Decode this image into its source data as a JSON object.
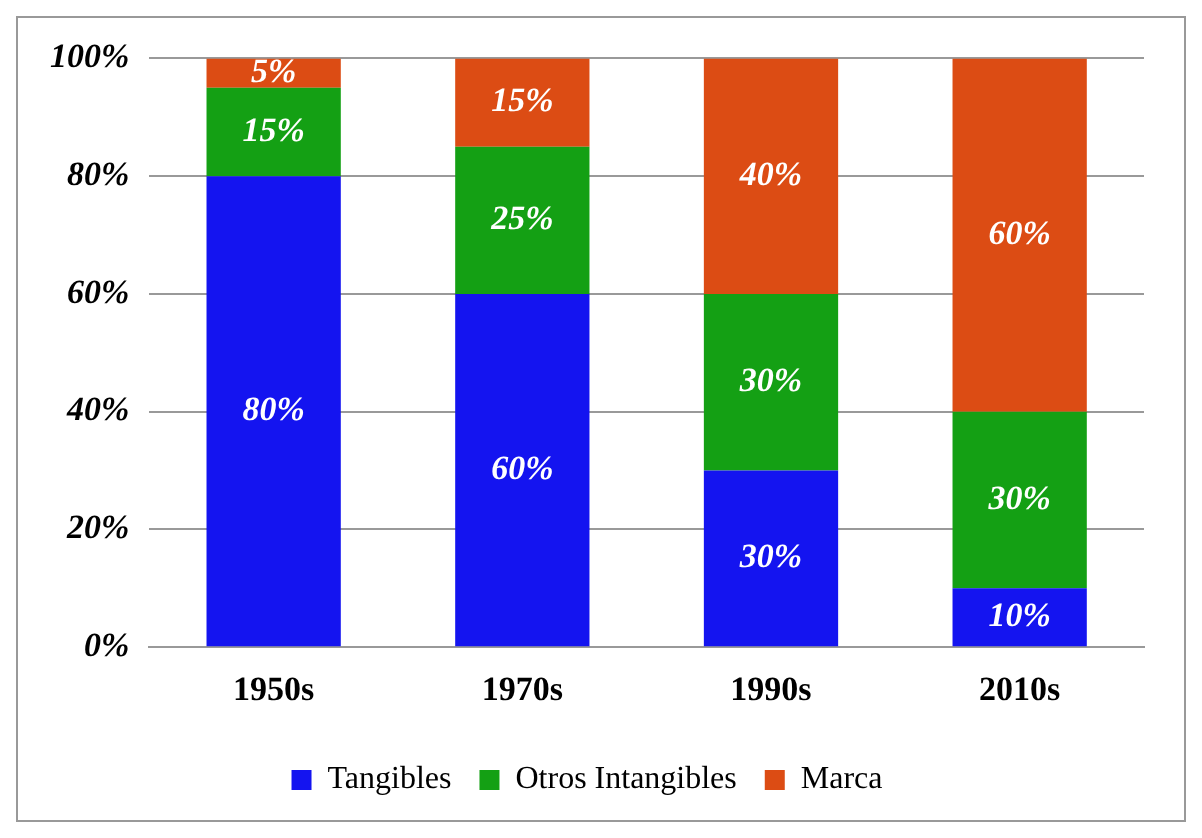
{
  "chart_data": {
    "type": "bar",
    "stacked": true,
    "categories": [
      "1950s",
      "1970s",
      "1990s",
      "2010s"
    ],
    "series": [
      {
        "name": "Tangibles",
        "color": "#1414f0",
        "values": [
          80,
          60,
          30,
          10
        ],
        "value_labels": [
          "80%",
          "60%",
          "30%",
          "10%"
        ]
      },
      {
        "name": "Otros Intangibles",
        "color": "#14a014",
        "values": [
          15,
          25,
          30,
          30
        ],
        "value_labels": [
          "15%",
          "25%",
          "30%",
          "30%"
        ]
      },
      {
        "name": "Marca",
        "color": "#dc4c14",
        "values": [
          5,
          15,
          40,
          60
        ],
        "value_labels": [
          "5%",
          "15%",
          "40%",
          "60%"
        ]
      }
    ],
    "ylim": [
      0,
      100
    ],
    "yticks": [
      {
        "value": 0,
        "label": "0%"
      },
      {
        "value": 20,
        "label": "20%"
      },
      {
        "value": 40,
        "label": "40%"
      },
      {
        "value": 60,
        "label": "60%"
      },
      {
        "value": 80,
        "label": "80%"
      },
      {
        "value": 100,
        "label": "100%"
      }
    ],
    "grid": "y",
    "legend": "bottom"
  }
}
